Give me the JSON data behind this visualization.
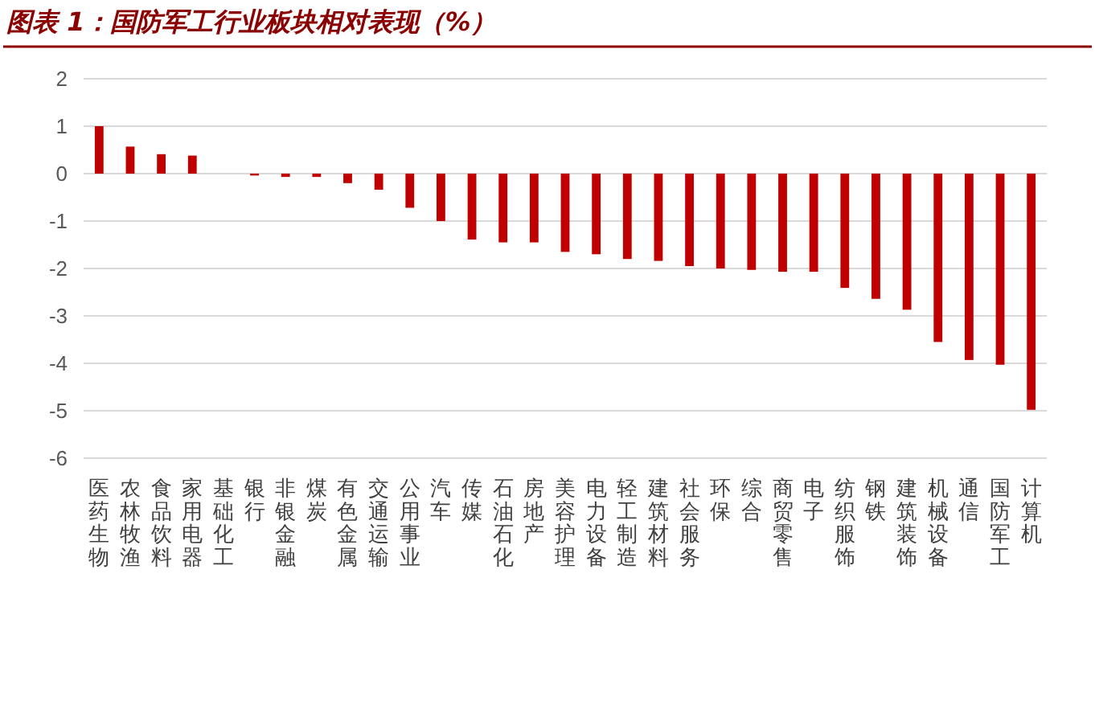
{
  "chart_data": {
    "type": "bar",
    "title": "图表 1：国防军工行业板块相对表现（%）",
    "categories": [
      "医药生物",
      "农林牧渔",
      "食品饮料",
      "家用电器",
      "基础化工",
      "银行",
      "非银金融",
      "煤炭",
      "有色金属",
      "交通运输",
      "公用事业",
      "汽车",
      "传媒",
      "石油石化",
      "房地产",
      "美容护理",
      "电力设备",
      "轻工制造",
      "建筑材料",
      "社会服务",
      "环保",
      "综合",
      "商贸零售",
      "电子",
      "纺织服饰",
      "钢铁",
      "建筑装饰",
      "机械设备",
      "通信",
      "国防军工",
      "计算机"
    ],
    "values": [
      1.0,
      0.57,
      0.41,
      0.38,
      0,
      -0.04,
      -0.07,
      -0.07,
      -0.2,
      -0.34,
      -0.72,
      -1.0,
      -1.39,
      -1.45,
      -1.45,
      -1.65,
      -1.7,
      -1.8,
      -1.84,
      -1.95,
      -2.0,
      -2.03,
      -2.07,
      -2.07,
      -2.41,
      -2.64,
      -2.87,
      -3.55,
      -3.93,
      -4.03,
      -4.98
    ],
    "color": "#c00000",
    "ylim": [
      -6,
      2
    ],
    "yticks": [
      -6,
      -5,
      -4,
      -3,
      -2,
      -1,
      0,
      1,
      2
    ],
    "grid": "y"
  }
}
